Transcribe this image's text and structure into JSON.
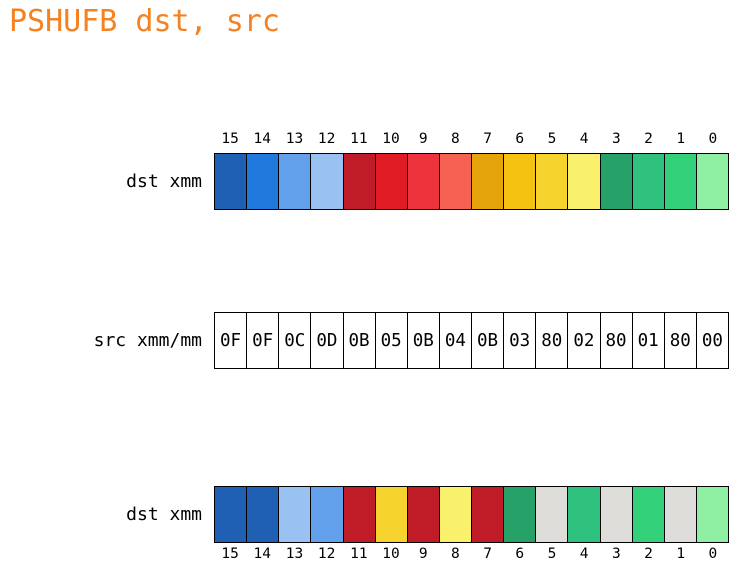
{
  "title": "PSHUFB dst, src",
  "rows": [
    {
      "label": "dst xmm",
      "indices": [
        "15",
        "14",
        "13",
        "12",
        "11",
        "10",
        "9",
        "8",
        "7",
        "6",
        "5",
        "4",
        "3",
        "2",
        "1",
        "0"
      ],
      "cells": [
        {
          "text": "",
          "color": "#1f5fb4"
        },
        {
          "text": "",
          "color": "#1f78dc"
        },
        {
          "text": "",
          "color": "#62a0eb"
        },
        {
          "text": "",
          "color": "#99c1f1"
        },
        {
          "text": "",
          "color": "#c01c28"
        },
        {
          "text": "",
          "color": "#e01b24"
        },
        {
          "text": "",
          "color": "#ed333b"
        },
        {
          "text": "",
          "color": "#f66151"
        },
        {
          "text": "",
          "color": "#e5a50a"
        },
        {
          "text": "",
          "color": "#f5c211"
        },
        {
          "text": "",
          "color": "#f6d32d"
        },
        {
          "text": "",
          "color": "#f9f06b"
        },
        {
          "text": "",
          "color": "#26a269"
        },
        {
          "text": "",
          "color": "#2ec27e"
        },
        {
          "text": "",
          "color": "#33d17a"
        },
        {
          "text": "",
          "color": "#8ff0a4"
        }
      ]
    },
    {
      "label": "src xmm/mm",
      "indices": [],
      "cells": [
        {
          "text": "0F",
          "color": "#ffffff"
        },
        {
          "text": "0F",
          "color": "#ffffff"
        },
        {
          "text": "0C",
          "color": "#ffffff"
        },
        {
          "text": "0D",
          "color": "#ffffff"
        },
        {
          "text": "0B",
          "color": "#ffffff"
        },
        {
          "text": "05",
          "color": "#ffffff"
        },
        {
          "text": "0B",
          "color": "#ffffff"
        },
        {
          "text": "04",
          "color": "#ffffff"
        },
        {
          "text": "0B",
          "color": "#ffffff"
        },
        {
          "text": "03",
          "color": "#ffffff"
        },
        {
          "text": "80",
          "color": "#ffffff"
        },
        {
          "text": "02",
          "color": "#ffffff"
        },
        {
          "text": "80",
          "color": "#ffffff"
        },
        {
          "text": "01",
          "color": "#ffffff"
        },
        {
          "text": "80",
          "color": "#ffffff"
        },
        {
          "text": "00",
          "color": "#ffffff"
        }
      ]
    },
    {
      "label": "dst xmm",
      "indices": [
        "15",
        "14",
        "13",
        "12",
        "11",
        "10",
        "9",
        "8",
        "7",
        "6",
        "5",
        "4",
        "3",
        "2",
        "1",
        "0"
      ],
      "cells": [
        {
          "text": "",
          "color": "#1f5fb4"
        },
        {
          "text": "",
          "color": "#1f5fb4"
        },
        {
          "text": "",
          "color": "#99c1f1"
        },
        {
          "text": "",
          "color": "#62a0eb"
        },
        {
          "text": "",
          "color": "#c01c28"
        },
        {
          "text": "",
          "color": "#f6d32d"
        },
        {
          "text": "",
          "color": "#c01c28"
        },
        {
          "text": "",
          "color": "#f9f06b"
        },
        {
          "text": "",
          "color": "#c01c28"
        },
        {
          "text": "",
          "color": "#26a269"
        },
        {
          "text": "",
          "color": "#deddda"
        },
        {
          "text": "",
          "color": "#2ec27e"
        },
        {
          "text": "",
          "color": "#deddda"
        },
        {
          "text": "",
          "color": "#33d17a"
        },
        {
          "text": "",
          "color": "#deddda"
        },
        {
          "text": "",
          "color": "#8ff0a4"
        }
      ]
    }
  ]
}
